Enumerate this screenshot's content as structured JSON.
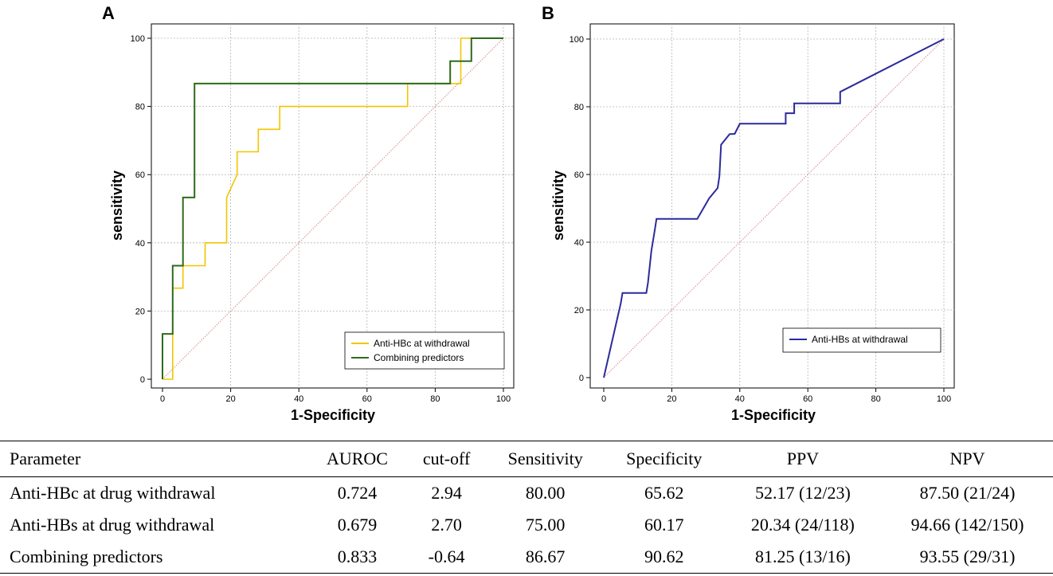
{
  "chart_data": [
    {
      "type": "line",
      "panel": "A",
      "xlabel": "1-Specificity",
      "ylabel": "sensitivity",
      "xlim": [
        0,
        100
      ],
      "ylim": [
        0,
        100
      ],
      "xticks": [
        0,
        20,
        40,
        60,
        80,
        100
      ],
      "yticks": [
        0,
        20,
        40,
        60,
        80,
        100
      ],
      "grid": true,
      "legend_position": "bottom-right",
      "reference_line": {
        "x": [
          0,
          100
        ],
        "y": [
          0,
          100
        ],
        "color": "#d98a8a"
      },
      "series": [
        {
          "name": "Anti-HBc at withdrawal",
          "color": "#f2c500",
          "x": [
            0,
            3,
            3,
            6,
            6,
            12.5,
            12.5,
            18.8,
            18.8,
            21.9,
            21.9,
            28.1,
            28.1,
            34.4,
            34.4,
            71.9,
            71.9,
            84.4,
            84.4,
            87.5,
            87.5,
            90.6,
            90.6,
            100
          ],
          "y": [
            0,
            0,
            26.7,
            26.7,
            33.3,
            33.3,
            40,
            40,
            53.3,
            60,
            66.7,
            66.7,
            73.3,
            73.3,
            80,
            80,
            86.7,
            86.7,
            86.7,
            86.7,
            100,
            100,
            100,
            100
          ]
        },
        {
          "name": "Combining predictors",
          "color": "#2e6b1a",
          "x": [
            0,
            0,
            3,
            3,
            6,
            6,
            9.4,
            9.4,
            84.4,
            84.4,
            87.5,
            87.5,
            90.6,
            90.6,
            100
          ],
          "y": [
            0,
            13.3,
            13.3,
            33.3,
            33.3,
            53.3,
            53.3,
            86.7,
            86.7,
            93.3,
            93.3,
            93.3,
            93.3,
            100,
            100
          ]
        }
      ]
    },
    {
      "type": "line",
      "panel": "B",
      "xlabel": "1-Specificity",
      "ylabel": "sensitivity",
      "xlim": [
        0,
        100
      ],
      "ylim": [
        0,
        100
      ],
      "xticks": [
        0,
        20,
        40,
        60,
        80,
        100
      ],
      "yticks": [
        0,
        20,
        40,
        60,
        80,
        100
      ],
      "grid": true,
      "legend_position": "bottom-right",
      "reference_line": {
        "x": [
          0,
          100
        ],
        "y": [
          0,
          100
        ],
        "color": "#d98a8a"
      },
      "series": [
        {
          "name": "Anti-HBs at withdrawal",
          "color": "#2b2b9b",
          "x": [
            0,
            5,
            5,
            5.5,
            5.5,
            12.5,
            12.5,
            13,
            13,
            14,
            14,
            15,
            15,
            15.5,
            15.5,
            27.5,
            27.5,
            31,
            31,
            33.5,
            33.5,
            34,
            34,
            34.5,
            34.5,
            37,
            37,
            38.5,
            38.5,
            40,
            40,
            53.5,
            53.5,
            56,
            56,
            56.5,
            56.5,
            69.5,
            69.5,
            100
          ],
          "y": [
            0,
            22,
            22,
            25,
            25,
            25,
            25,
            28,
            28,
            37.5,
            37.5,
            43.5,
            43.5,
            46.9,
            46.9,
            46.9,
            46.9,
            53,
            53,
            56,
            56,
            59.5,
            59.5,
            68.8,
            68.8,
            71.9,
            71.9,
            72,
            72,
            75,
            75,
            75,
            78.1,
            78.1,
            81,
            81,
            81,
            81,
            84.4,
            100
          ]
        }
      ]
    }
  ],
  "table": {
    "headers": [
      "Parameter",
      "AUROC",
      "cut-off",
      "Sensitivity",
      "Specificity",
      "PPV",
      "NPV"
    ],
    "rows": [
      [
        "Anti-HBc at drug withdrawal",
        "0.724",
        "2.94",
        "80.00",
        "65.62",
        "52.17 (12/23)",
        "87.50 (21/24)"
      ],
      [
        "Anti-HBs at drug withdrawal",
        "0.679",
        "2.70",
        "75.00",
        "60.17",
        "20.34 (24/118)",
        "94.66 (142/150)"
      ],
      [
        "Combining predictors",
        "0.833",
        "-0.64",
        "86.67",
        "90.62",
        "81.25 (13/16)",
        "93.55 (29/31)"
      ]
    ]
  }
}
